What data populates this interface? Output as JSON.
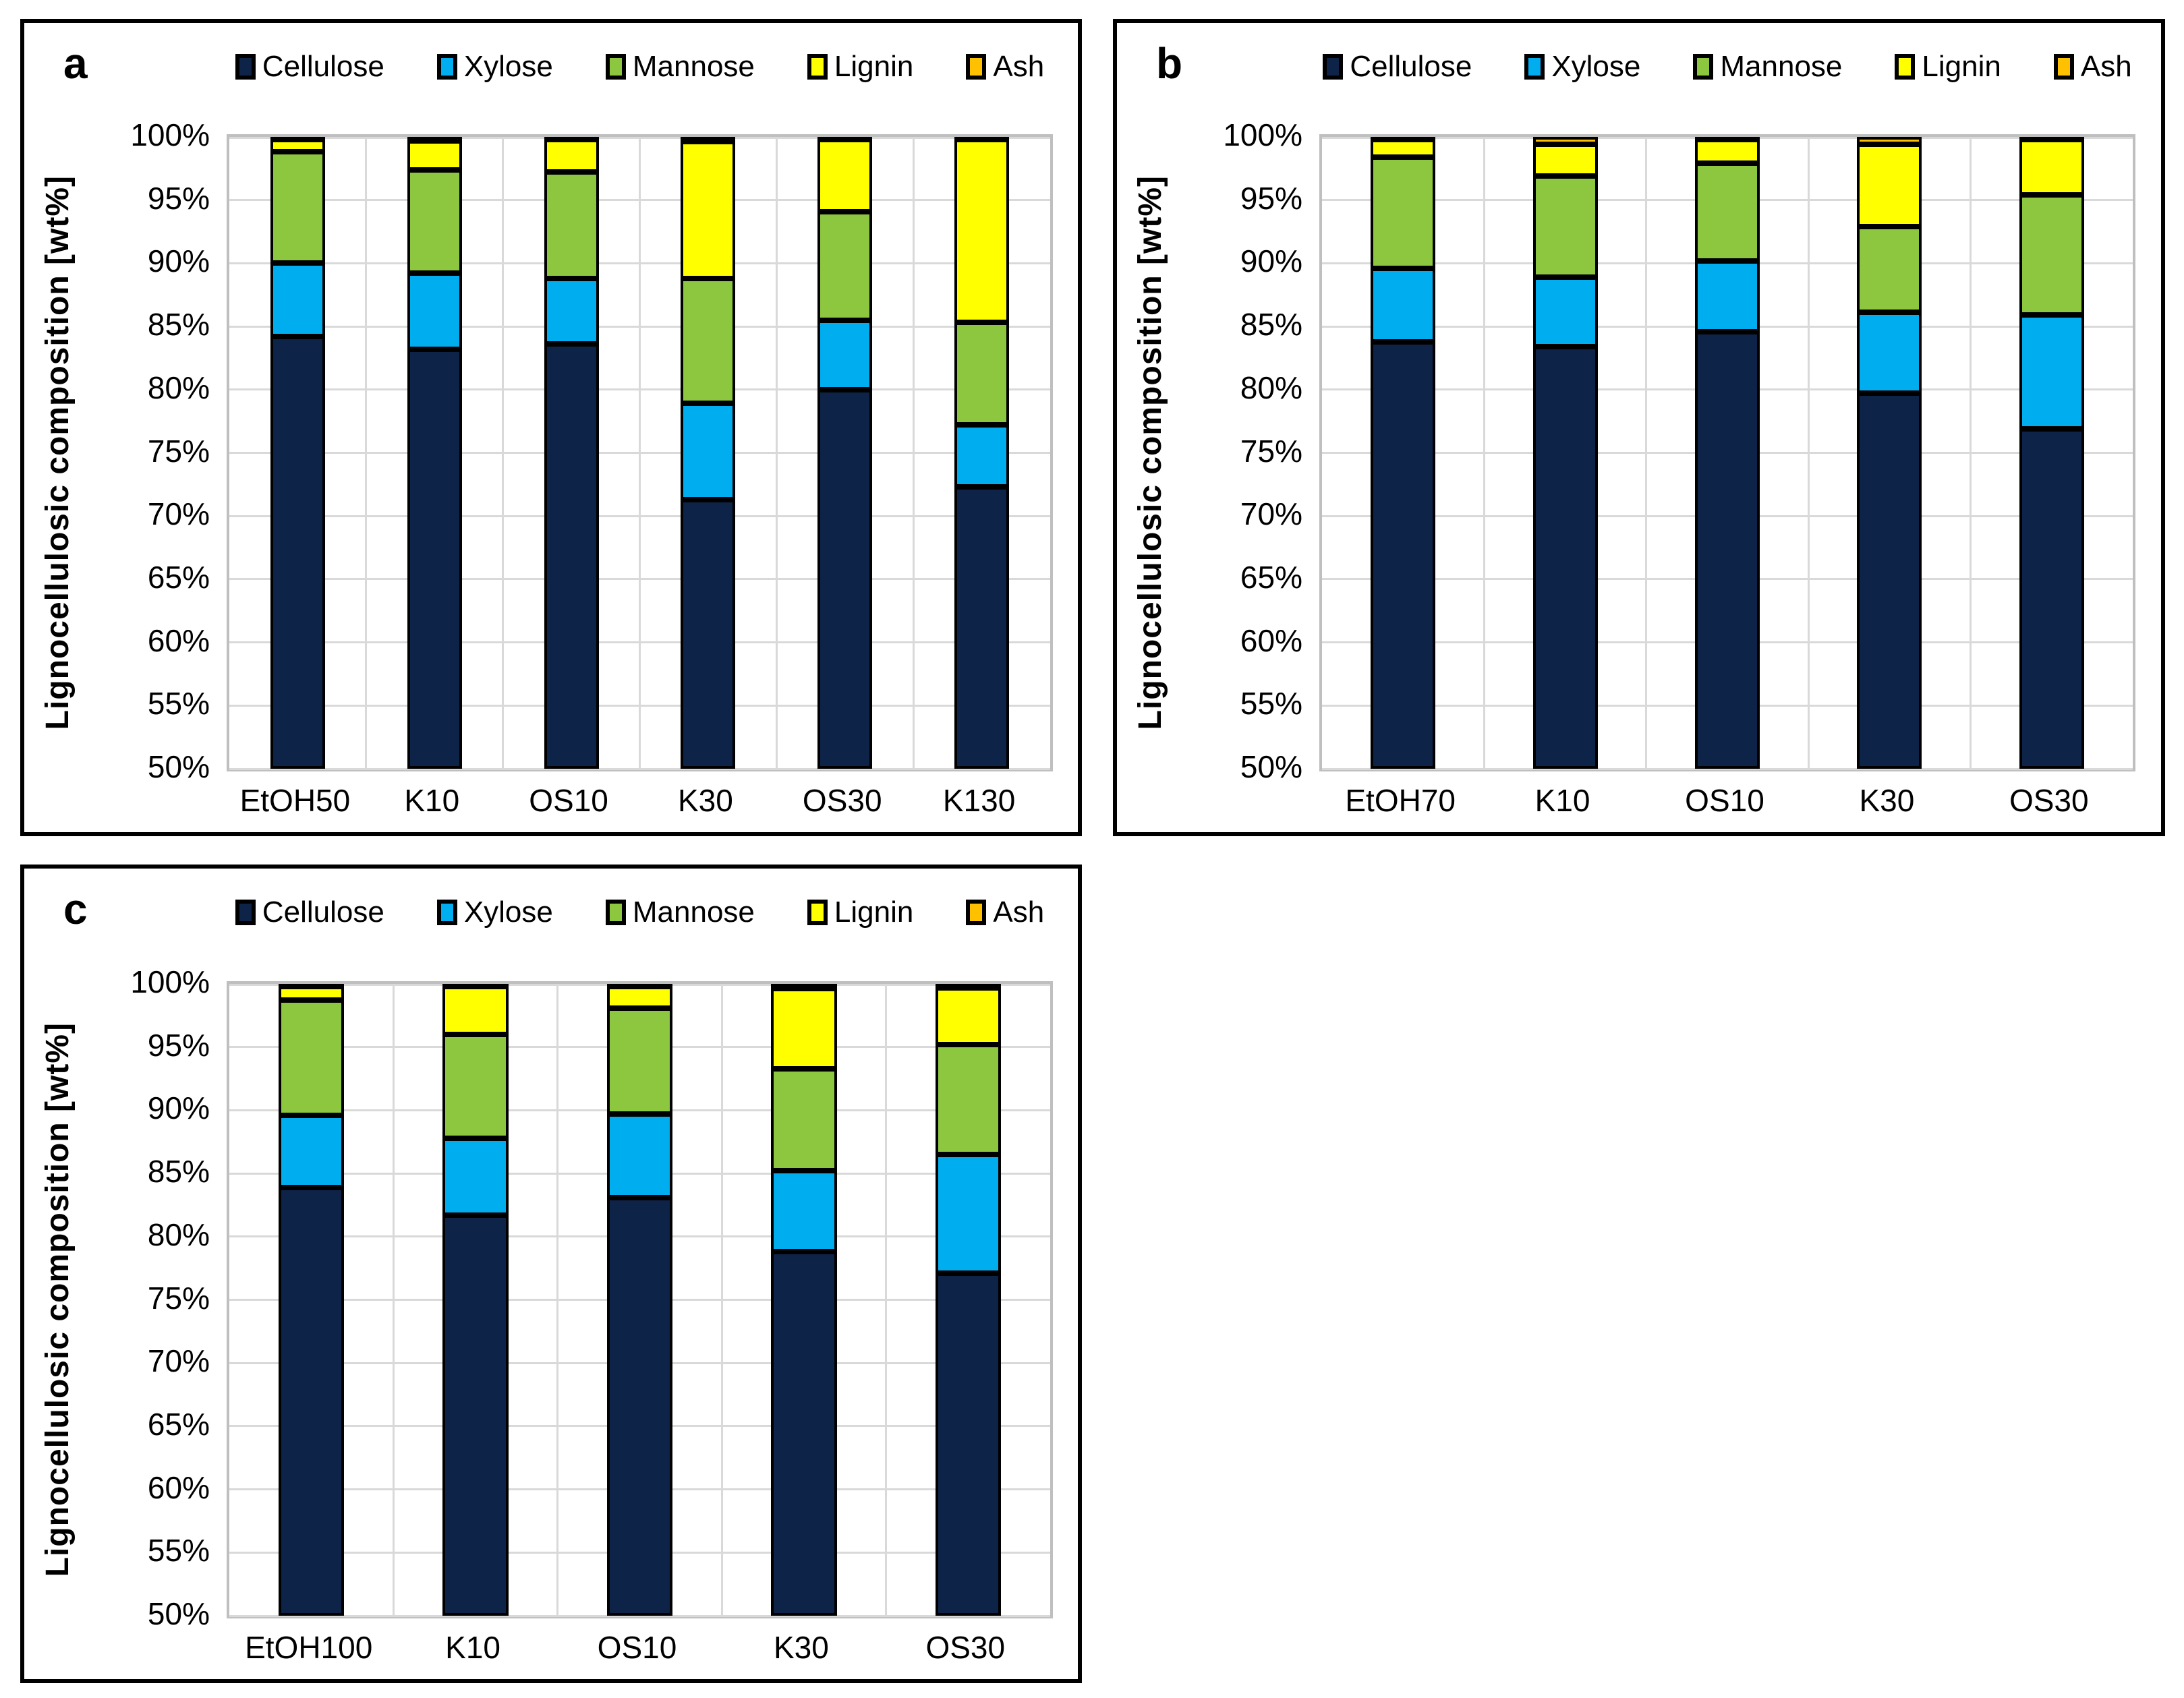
{
  "figure_title": "",
  "legend": {
    "position": "top",
    "items": [
      {
        "label": "Cellulose",
        "color": "#0d2347"
      },
      {
        "label": "Xylose",
        "color": "#00aeef"
      },
      {
        "label": "Mannose",
        "color": "#8dc63f"
      },
      {
        "label": "Lignin",
        "color": "#ffff00"
      },
      {
        "label": "Ash",
        "color": "#ffc000"
      }
    ]
  },
  "axis": {
    "ylabel": "Lignocellulosic composition [wt%]",
    "ymin": 50,
    "ymax": 100,
    "ytick_step": 5,
    "ytick_labels": [
      "100%",
      "95%",
      "90%",
      "85%",
      "80%",
      "75%",
      "70%",
      "65%",
      "60%",
      "55%",
      "50%"
    ],
    "grid": "horizontal every 5%, vertical at category boundaries",
    "gridline_color": "#d9d9d9",
    "plot_border_color": "#bfbfbf"
  },
  "panels": [
    {
      "label": "a"
    },
    {
      "label": "b"
    },
    {
      "label": "c"
    }
  ],
  "chart_data": [
    {
      "panel": "a",
      "type": "bar",
      "stacked": true,
      "units": "wt%",
      "ylim": [
        50,
        100
      ],
      "categories": [
        "EtOH50",
        "K10",
        "OS10",
        "K30",
        "OS30",
        "K130"
      ],
      "series": [
        {
          "name": "Cellulose",
          "color": "#0d2347",
          "values": [
            84.2,
            83.2,
            83.6,
            71.3,
            80.0,
            72.3
          ]
        },
        {
          "name": "Xylose",
          "color": "#00aeef",
          "values": [
            5.8,
            6.0,
            5.2,
            7.6,
            5.5,
            4.9
          ]
        },
        {
          "name": "Mannose",
          "color": "#8dc63f",
          "values": [
            8.8,
            8.2,
            8.4,
            9.9,
            8.6,
            8.1
          ]
        },
        {
          "name": "Lignin",
          "color": "#ffff00",
          "values": [
            1.0,
            2.3,
            2.6,
            10.8,
            5.7,
            14.6
          ]
        },
        {
          "name": "Ash",
          "color": "#ffc000",
          "values": [
            0.2,
            0.3,
            0.2,
            0.4,
            0.2,
            0.1
          ]
        }
      ]
    },
    {
      "panel": "b",
      "type": "bar",
      "stacked": true,
      "units": "wt%",
      "ylim": [
        50,
        100
      ],
      "categories": [
        "EtOH70",
        "K10",
        "OS10",
        "K30",
        "OS30"
      ],
      "series": [
        {
          "name": "Cellulose",
          "color": "#0d2347",
          "values": [
            83.8,
            83.4,
            84.6,
            79.7,
            76.9
          ]
        },
        {
          "name": "Xylose",
          "color": "#00aeef",
          "values": [
            5.8,
            5.5,
            5.6,
            6.4,
            9.0
          ]
        },
        {
          "name": "Mannose",
          "color": "#8dc63f",
          "values": [
            8.8,
            8.0,
            7.7,
            6.8,
            9.5
          ]
        },
        {
          "name": "Lignin",
          "color": "#ffff00",
          "values": [
            1.4,
            2.5,
            1.9,
            6.5,
            4.5
          ]
        },
        {
          "name": "Ash",
          "color": "#ffc000",
          "values": [
            0.2,
            0.6,
            0.2,
            0.6,
            0.1
          ]
        }
      ]
    },
    {
      "panel": "c",
      "type": "bar",
      "stacked": true,
      "units": "wt%",
      "ylim": [
        50,
        100
      ],
      "categories": [
        "EtOH100",
        "K10",
        "OS10",
        "K30",
        "OS30"
      ],
      "series": [
        {
          "name": "Cellulose",
          "color": "#0d2347",
          "values": [
            83.9,
            81.7,
            83.1,
            78.8,
            77.1
          ]
        },
        {
          "name": "Xylose",
          "color": "#00aeef",
          "values": [
            5.7,
            6.1,
            6.6,
            6.4,
            9.4
          ]
        },
        {
          "name": "Mannose",
          "color": "#8dc63f",
          "values": [
            9.1,
            8.2,
            8.4,
            8.1,
            8.7
          ]
        },
        {
          "name": "Lignin",
          "color": "#ffff00",
          "values": [
            1.1,
            3.9,
            1.7,
            6.3,
            4.5
          ]
        },
        {
          "name": "Ash",
          "color": "#ffc000",
          "values": [
            0.2,
            0.1,
            0.2,
            0.4,
            0.3
          ]
        }
      ]
    }
  ]
}
